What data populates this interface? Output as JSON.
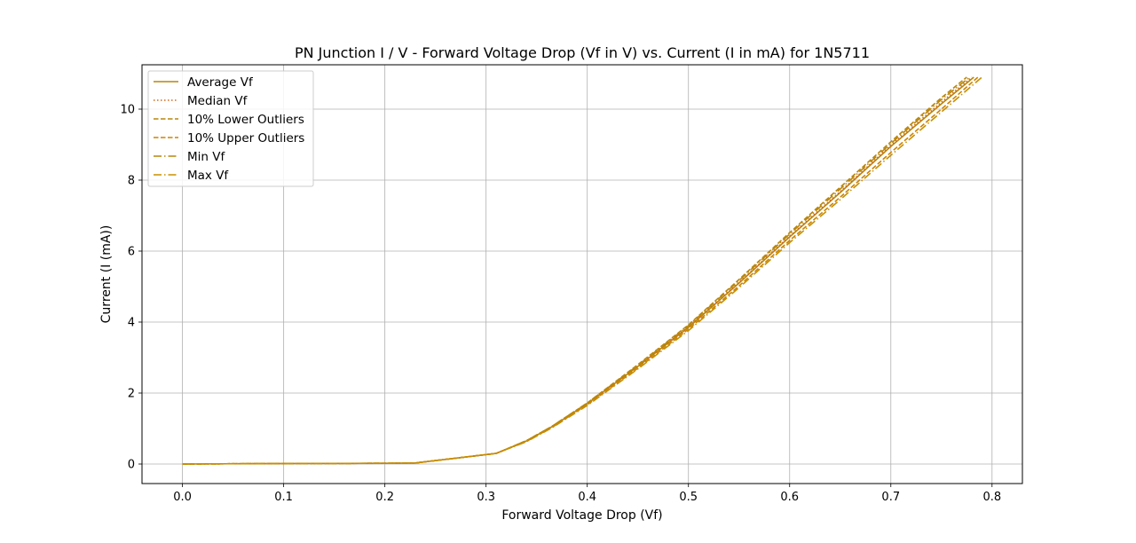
{
  "chart_data": {
    "type": "line",
    "title": "PN Junction I / V - Forward Voltage Drop (Vf in V) vs. Current (I in mA) for 1N5711",
    "xlabel": "Forward Voltage Drop (Vf)",
    "ylabel": "Current (I (mA))",
    "xlim": [
      -0.04,
      0.83
    ],
    "ylim": [
      -0.55,
      11.25
    ],
    "xticks": [
      "0.0",
      "0.1",
      "0.2",
      "0.3",
      "0.4",
      "0.5",
      "0.6",
      "0.7",
      "0.8"
    ],
    "yticks": [
      "0",
      "2",
      "4",
      "6",
      "8",
      "10"
    ],
    "grid": true,
    "legend_position": "top-left",
    "series": [
      {
        "name": "Average Vf",
        "color": "#b8860b",
        "dash": "solid",
        "x": [
          0.0,
          0.1,
          0.2,
          0.23,
          0.31,
          0.34,
          0.365,
          0.4,
          0.45,
          0.5,
          0.55,
          0.6,
          0.65,
          0.7,
          0.75,
          0.782
        ],
        "y": [
          0.0,
          0.015,
          0.02,
          0.03,
          0.3,
          0.65,
          1.05,
          1.7,
          2.75,
          3.85,
          5.1,
          6.4,
          7.65,
          8.95,
          10.15,
          10.9
        ]
      },
      {
        "name": "Median Vf",
        "color": "#d2691e",
        "dash": "dotted",
        "x": [
          0.0,
          0.1,
          0.2,
          0.23,
          0.31,
          0.34,
          0.365,
          0.4,
          0.45,
          0.5,
          0.55,
          0.6,
          0.65,
          0.7,
          0.75,
          0.78
        ],
        "y": [
          0.0,
          0.015,
          0.02,
          0.03,
          0.3,
          0.65,
          1.05,
          1.7,
          2.75,
          3.87,
          5.12,
          6.42,
          7.68,
          8.98,
          10.2,
          10.9
        ]
      },
      {
        "name": "10% Lower Outliers",
        "color": "#b8860b",
        "dash": "dashed",
        "x": [
          0.0,
          0.1,
          0.2,
          0.23,
          0.31,
          0.34,
          0.365,
          0.4,
          0.45,
          0.5,
          0.55,
          0.6,
          0.65,
          0.7,
          0.75,
          0.775
        ],
        "y": [
          0.0,
          0.015,
          0.02,
          0.03,
          0.3,
          0.66,
          1.06,
          1.72,
          2.8,
          3.92,
          5.2,
          6.52,
          7.8,
          9.08,
          10.32,
          10.9
        ]
      },
      {
        "name": "10% Upper Outliers",
        "color": "#cc8400",
        "dash": "dashed",
        "x": [
          0.0,
          0.1,
          0.2,
          0.23,
          0.31,
          0.34,
          0.365,
          0.4,
          0.45,
          0.5,
          0.55,
          0.6,
          0.65,
          0.7,
          0.75,
          0.786
        ],
        "y": [
          0.0,
          0.015,
          0.02,
          0.03,
          0.3,
          0.64,
          1.03,
          1.67,
          2.7,
          3.8,
          5.02,
          6.3,
          7.52,
          8.78,
          10.0,
          10.9
        ]
      },
      {
        "name": "Min Vf",
        "color": "#b8860b",
        "dash": "dashdot",
        "x": [
          0.0,
          0.1,
          0.2,
          0.23,
          0.31,
          0.34,
          0.365,
          0.4,
          0.45,
          0.5,
          0.55,
          0.6,
          0.65,
          0.7,
          0.75,
          0.778
        ],
        "y": [
          0.0,
          0.015,
          0.02,
          0.03,
          0.3,
          0.66,
          1.06,
          1.72,
          2.78,
          3.9,
          5.17,
          6.48,
          7.75,
          9.03,
          10.27,
          10.9
        ]
      },
      {
        "name": "Max Vf",
        "color": "#c89000",
        "dash": "dashdot",
        "x": [
          0.0,
          0.1,
          0.2,
          0.23,
          0.31,
          0.34,
          0.365,
          0.4,
          0.45,
          0.5,
          0.55,
          0.6,
          0.65,
          0.7,
          0.75,
          0.79
        ],
        "y": [
          0.0,
          0.015,
          0.02,
          0.03,
          0.3,
          0.63,
          1.02,
          1.65,
          2.68,
          3.76,
          4.97,
          6.24,
          7.45,
          8.7,
          9.92,
          10.9
        ]
      }
    ]
  }
}
